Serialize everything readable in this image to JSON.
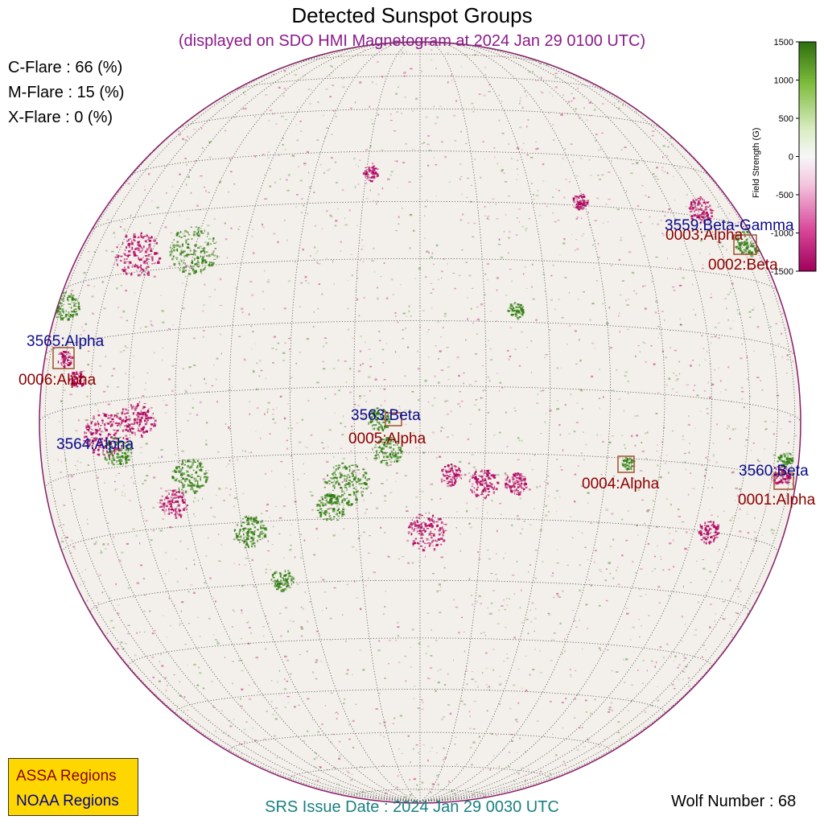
{
  "title": "Detected Sunspot Groups",
  "subtitle": "(displayed on SDO HMI Magnetogram at 2024 Jan 29 0100 UTC)",
  "flare_probabilities": [
    {
      "label": "C-Flare : 66 (%)"
    },
    {
      "label": "M-Flare : 15 (%)"
    },
    {
      "label": "X-Flare :  0 (%)"
    }
  ],
  "srs_issue": "SRS Issue Date : 2024 Jan 29 0030 UTC",
  "wolf_number": "Wolf Number : 68",
  "legend": {
    "assa": "ASSA Regions",
    "noaa": "NOAA Regions"
  },
  "colorbar": {
    "label": "Field Strength (G)",
    "ticks": [
      "1500",
      "1000",
      "500",
      "0",
      "-500",
      "-1000",
      "-1500"
    ],
    "min": -1500,
    "max": 1500,
    "positive_color": "#2e7d0e",
    "negative_color": "#b0005e"
  },
  "regions": {
    "noaa": [
      "3559:Beta-Gamma",
      "3560:Beta",
      "3563:Beta",
      "3564:Alpha",
      "3565:Alpha"
    ],
    "assa": [
      "0001:Alpha",
      "0002:Beta",
      "0003:Alpha",
      "0004:Alpha",
      "0005:Alpha",
      "0006:Alpha"
    ]
  },
  "colors": {
    "noaa": "#0a0a8c",
    "assa": "#8b0000",
    "box": "#a0522d",
    "disk": "#f3efea"
  }
}
